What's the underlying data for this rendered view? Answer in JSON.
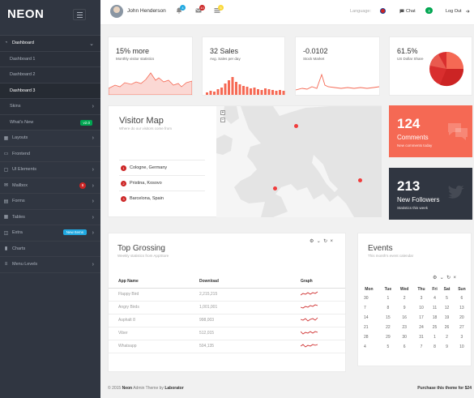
{
  "brand": {
    "logo": "NEON"
  },
  "sidebar": {
    "items": [
      {
        "label": "Dashboard",
        "icon": "gauge-icon",
        "name": "sidebar-item-dashboard",
        "state": "open",
        "chev": "⌄"
      },
      {
        "label": "Dashboard 1",
        "name": "sidebar-subitem-dashboard-1",
        "sub": true
      },
      {
        "label": "Dashboard 2",
        "name": "sidebar-subitem-dashboard-2",
        "sub": true
      },
      {
        "label": "Dashboard 3",
        "name": "sidebar-subitem-dashboard-3",
        "sub": true,
        "active": true
      },
      {
        "label": "Skins",
        "name": "sidebar-subitem-skins",
        "sub": true,
        "chev": "›"
      },
      {
        "label": "What's New",
        "name": "sidebar-subitem-whats-new",
        "sub": true,
        "badge": "v2.0",
        "badge_type": "green"
      },
      {
        "label": "Layouts",
        "icon": "layout-icon",
        "name": "sidebar-item-layouts",
        "chev": "›"
      },
      {
        "label": "Frontend",
        "icon": "monitor-icon",
        "name": "sidebar-item-frontend"
      },
      {
        "label": "UI Elements",
        "icon": "window-icon",
        "name": "sidebar-item-ui-elements",
        "chev": "›"
      },
      {
        "label": "Mailbox",
        "icon": "mail-icon",
        "name": "sidebar-item-mailbox",
        "chev": "›",
        "badge": "8",
        "badge_type": "red"
      },
      {
        "label": "Forms",
        "icon": "doc-icon",
        "name": "sidebar-item-forms",
        "chev": "›"
      },
      {
        "label": "Tables",
        "icon": "table-icon",
        "name": "sidebar-item-tables",
        "chev": "›"
      },
      {
        "label": "Extra",
        "icon": "bag-icon",
        "name": "sidebar-item-extra",
        "chev": "›",
        "badge": "New Items",
        "badge_type": "blue"
      },
      {
        "label": "Charts",
        "icon": "bar-chart-icon",
        "name": "sidebar-item-charts"
      },
      {
        "label": "Menu Levels",
        "icon": "list-icon",
        "name": "sidebar-item-menu-levels",
        "chev": "›"
      }
    ]
  },
  "topbar": {
    "username": "John Henderson",
    "notif_count": "4",
    "mail_count": "10",
    "tasks_count": "5",
    "language_label": "Language:",
    "chat_label": "Chat",
    "chat_count": "3",
    "logout_label": "Log Out"
  },
  "stats": [
    {
      "value": "15% more",
      "label": "Monthly visitor statistics",
      "kind": "area"
    },
    {
      "value": "32 Sales",
      "label": "Avg. Sales per day",
      "kind": "bars"
    },
    {
      "value": "-0.0102",
      "label": "Stock Market",
      "kind": "line"
    }
  ],
  "pie_stat": {
    "value": "61.5%",
    "label": "US Dollar Share"
  },
  "visitor_map": {
    "title": "Visitor Map",
    "subtitle": "Where do our visitors come from",
    "cities": [
      {
        "n": "1",
        "name": "Cologne, Germany"
      },
      {
        "n": "2",
        "name": "Pristina, Kosovo"
      },
      {
        "n": "3",
        "name": "Barcelona, Spain"
      }
    ],
    "zoom_in": "+",
    "zoom_out": "−"
  },
  "tiles": [
    {
      "number": "124",
      "title": "Comments",
      "desc": "New comments today",
      "color": "#f56954"
    },
    {
      "number": "213",
      "title": "New Followers",
      "desc": "Statistics this week",
      "color": "#303641"
    }
  ],
  "top_grossing": {
    "title": "Top Grossing",
    "subtitle": "Weekly statistics from AppStore",
    "columns": [
      "App Name",
      "Download",
      "Graph"
    ],
    "rows": [
      {
        "app": "Flappy Bird",
        "download": "2,215,215"
      },
      {
        "app": "Angry Birds",
        "download": "1,001,001"
      },
      {
        "app": "Asphalt 8",
        "download": "998,003"
      },
      {
        "app": "Viber",
        "download": "512,015"
      },
      {
        "app": "Whatsapp",
        "download": "504,135"
      }
    ]
  },
  "events": {
    "title": "Events",
    "subtitle": "This month's event calendar",
    "days": [
      "Mon",
      "Tue",
      "Wed",
      "Thu",
      "Fri",
      "Sat",
      "Sun"
    ],
    "weeks": [
      [
        "",
        "",
        "",
        "",
        "",
        "",
        ""
      ],
      [
        "30",
        "1",
        "2",
        "3",
        "4",
        "5",
        "6"
      ],
      [
        "7",
        "8",
        "9",
        "10",
        "11",
        "12",
        "13"
      ],
      [
        "14",
        "15",
        "16",
        "17",
        "18",
        "19",
        "20"
      ],
      [
        "21",
        "22",
        "23",
        "24",
        "25",
        "26",
        "27"
      ],
      [
        "28",
        "29",
        "30",
        "31",
        "1",
        "2",
        "3"
      ],
      [
        "4",
        "5",
        "6",
        "7",
        "8",
        "9",
        "10"
      ]
    ]
  },
  "footer": {
    "left_prefix": "© 2015 ",
    "brand": "Neon",
    "left_mid": " Admin Theme by ",
    "author": "Laborator",
    "right": "Purchase this theme for $24"
  },
  "colors": {
    "accent_red": "#f56954",
    "sidebar": "#303641",
    "green": "#00a651",
    "blue": "#21a9e1"
  }
}
